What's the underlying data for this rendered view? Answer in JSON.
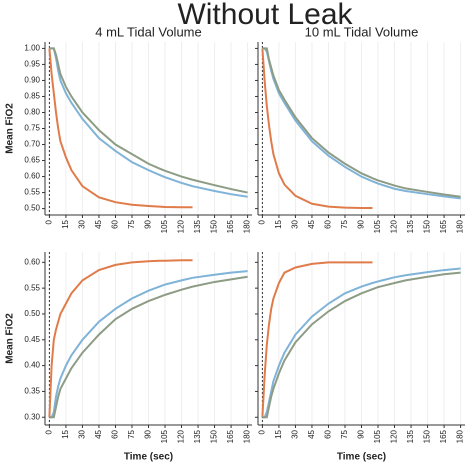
{
  "title": "Without Leak",
  "chart_data": [
    {
      "type": "line",
      "title": "4 mL Tidal Volume",
      "ylabel": "Mean FiO2",
      "x": [
        0,
        2,
        4,
        6,
        8,
        10,
        15,
        20,
        30,
        45,
        60,
        75,
        90,
        100,
        105,
        120,
        130,
        150,
        165,
        180
      ],
      "xlim": [
        -4,
        184
      ],
      "xticks": [
        0,
        15,
        30,
        45,
        60,
        75,
        90,
        105,
        120,
        135,
        150,
        165,
        180
      ],
      "ylim": [
        0.48,
        1.02
      ],
      "yticks": [
        {
          "value": 0.5,
          "label": "0.50"
        },
        0.55,
        {
          "value": 0.6,
          "label": "0.60"
        },
        0.65,
        {
          "value": 0.7,
          "label": "0.70"
        },
        0.75,
        {
          "value": 0.8,
          "label": "0.80"
        },
        0.85,
        {
          "value": 0.9,
          "label": "0.90"
        },
        0.95,
        {
          "value": 1,
          "label": "1.00"
        }
      ],
      "show_ytick_labels": true,
      "vline": 0,
      "series": [
        {
          "color": "#e07b4a",
          "values": [
            1,
            0.92,
            0.86,
            0.8,
            0.75,
            0.71,
            0.66,
            0.62,
            0.57,
            0.535,
            0.52,
            0.512,
            0.508,
            0.506,
            0.505,
            0.504,
            0.504,
            null,
            null,
            null
          ]
        },
        {
          "color": "#7fb3d8",
          "values": [
            1,
            1,
            1,
            0.97,
            0.93,
            0.9,
            0.86,
            0.83,
            0.78,
            0.72,
            0.68,
            0.645,
            0.62,
            0.605,
            0.598,
            0.58,
            0.57,
            0.555,
            0.545,
            0.537
          ]
        },
        {
          "color": "#8e9c85",
          "values": [
            1,
            1,
            1,
            0.98,
            0.95,
            0.92,
            0.88,
            0.85,
            0.8,
            0.745,
            0.7,
            0.67,
            0.64,
            0.625,
            0.618,
            0.6,
            0.59,
            0.573,
            0.561,
            0.55
          ]
        }
      ]
    },
    {
      "type": "line",
      "title": "10 mL Tidal Volume",
      "x": [
        0,
        2,
        4,
        6,
        8,
        10,
        15,
        20,
        30,
        45,
        60,
        75,
        90,
        100,
        105,
        120,
        130,
        150,
        165,
        180
      ],
      "xlim": [
        -4,
        184
      ],
      "xticks": [
        0,
        15,
        30,
        45,
        60,
        75,
        90,
        105,
        120,
        135,
        150,
        165,
        180
      ],
      "ylim": [
        0.48,
        1.02
      ],
      "yticks": [
        {
          "value": 0.5,
          "label": "0.50"
        },
        0.55,
        {
          "value": 0.6,
          "label": "0.60"
        },
        0.65,
        {
          "value": 0.7,
          "label": "0.70"
        },
        0.75,
        {
          "value": 0.8,
          "label": "0.80"
        },
        0.85,
        {
          "value": 0.9,
          "label": "0.90"
        },
        0.95,
        {
          "value": 1,
          "label": "1.00"
        }
      ],
      "show_ytick_labels": false,
      "vline": 0,
      "series": [
        {
          "color": "#e07b4a",
          "values": [
            1,
            0.9,
            0.82,
            0.76,
            0.71,
            0.67,
            0.61,
            0.575,
            0.54,
            0.515,
            0.506,
            0.503,
            0.502,
            0.502,
            null,
            null,
            null,
            null,
            null,
            null
          ]
        },
        {
          "color": "#7fb3d8",
          "values": [
            1,
            1,
            0.99,
            0.96,
            0.93,
            0.905,
            0.86,
            0.83,
            0.775,
            0.71,
            0.665,
            0.63,
            0.6,
            0.585,
            0.578,
            0.562,
            0.555,
            0.545,
            0.538,
            0.532
          ]
        },
        {
          "color": "#8e9c85",
          "values": [
            1,
            1,
            1,
            0.965,
            0.94,
            0.915,
            0.87,
            0.84,
            0.785,
            0.72,
            0.675,
            0.64,
            0.61,
            0.595,
            0.588,
            0.572,
            0.563,
            0.552,
            0.544,
            0.537
          ]
        }
      ]
    },
    {
      "type": "line",
      "ylabel": "Mean FiO2",
      "xlabel": "Time (sec)",
      "x": [
        0,
        2,
        4,
        6,
        8,
        10,
        15,
        20,
        30,
        45,
        60,
        75,
        90,
        100,
        105,
        120,
        130,
        150,
        165,
        180
      ],
      "xlim": [
        -4,
        184
      ],
      "xticks": [
        0,
        15,
        30,
        45,
        60,
        75,
        90,
        105,
        120,
        135,
        150,
        165,
        180
      ],
      "ylim": [
        0.285,
        0.62
      ],
      "yticks": [
        {
          "value": 0.3,
          "label": "0.30"
        },
        0.35,
        {
          "value": 0.4,
          "label": "0.40"
        },
        0.45,
        {
          "value": 0.5,
          "label": "0.50"
        },
        0.55,
        {
          "value": 0.6,
          "label": "0.60"
        }
      ],
      "show_ytick_labels": true,
      "vline": 0,
      "series": [
        {
          "color": "#e07b4a",
          "values": [
            0.3,
            0.4,
            0.45,
            0.47,
            0.485,
            0.5,
            0.52,
            0.54,
            0.565,
            0.585,
            0.595,
            0.6,
            0.602,
            0.603,
            0.603,
            0.604,
            0.604,
            null,
            null,
            null
          ]
        },
        {
          "color": "#7fb3d8",
          "values": [
            0.3,
            0.3,
            0.31,
            0.34,
            0.36,
            0.375,
            0.4,
            0.42,
            0.45,
            0.485,
            0.51,
            0.53,
            0.545,
            0.553,
            0.557,
            0.565,
            0.57,
            0.576,
            0.58,
            0.583
          ]
        },
        {
          "color": "#8e9c85",
          "values": [
            0.3,
            0.3,
            0.3,
            0.32,
            0.34,
            0.355,
            0.375,
            0.395,
            0.425,
            0.46,
            0.49,
            0.51,
            0.525,
            0.533,
            0.537,
            0.547,
            0.553,
            0.562,
            0.567,
            0.572
          ]
        }
      ]
    },
    {
      "type": "line",
      "xlabel": "Time (sec)",
      "x": [
        0,
        2,
        4,
        6,
        8,
        10,
        15,
        20,
        30,
        45,
        60,
        75,
        90,
        100,
        105,
        120,
        130,
        150,
        165,
        180
      ],
      "xlim": [
        -4,
        184
      ],
      "xticks": [
        0,
        15,
        30,
        45,
        60,
        75,
        90,
        105,
        120,
        135,
        150,
        165,
        180
      ],
      "ylim": [
        0.285,
        0.62
      ],
      "yticks": [
        {
          "value": 0.3,
          "label": "0.30"
        },
        0.35,
        {
          "value": 0.4,
          "label": "0.40"
        },
        0.45,
        {
          "value": 0.5,
          "label": "0.50"
        },
        0.55,
        {
          "value": 0.6,
          "label": "0.60"
        }
      ],
      "show_ytick_labels": false,
      "vline": 0,
      "series": [
        {
          "color": "#e07b4a",
          "values": [
            0.3,
            0.38,
            0.44,
            0.48,
            0.51,
            0.53,
            0.56,
            0.58,
            0.59,
            0.597,
            0.6,
            0.6,
            0.6,
            0.6,
            null,
            null,
            null,
            null,
            null,
            null
          ]
        },
        {
          "color": "#7fb3d8",
          "values": [
            0.3,
            0.3,
            0.31,
            0.33,
            0.35,
            0.37,
            0.4,
            0.425,
            0.46,
            0.495,
            0.52,
            0.54,
            0.553,
            0.56,
            0.563,
            0.571,
            0.575,
            0.581,
            0.585,
            0.588
          ]
        },
        {
          "color": "#8e9c85",
          "values": [
            0.3,
            0.3,
            0.3,
            0.32,
            0.34,
            0.355,
            0.385,
            0.41,
            0.445,
            0.48,
            0.505,
            0.525,
            0.54,
            0.548,
            0.552,
            0.56,
            0.565,
            0.572,
            0.577,
            0.58
          ]
        }
      ]
    }
  ]
}
